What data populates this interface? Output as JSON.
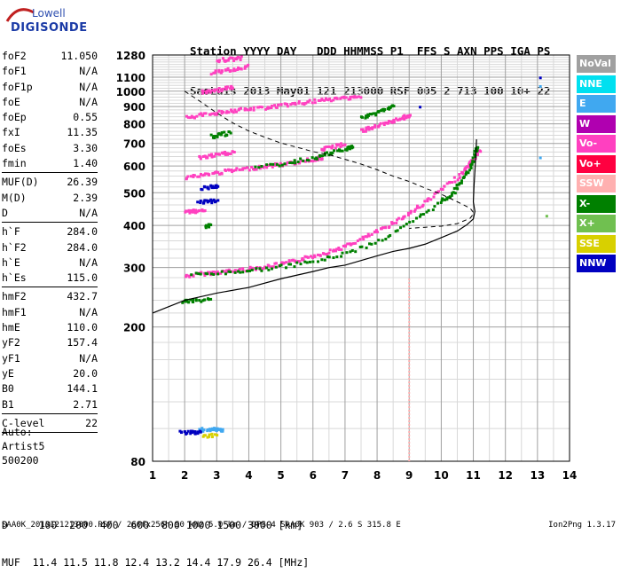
{
  "header": {
    "line1": "Station YYYY DAY   DDD HHMMSS P1  FFS S AXN PPS IGA PS",
    "line2": "SaoLuis 2013 May01 121 213000 RSF 005 2 713 100 10+ 22"
  },
  "logo": {
    "line1": "Lowell",
    "line2": "DIGISONDE"
  },
  "params": [
    {
      "k": "foF2",
      "v": "11.050"
    },
    {
      "k": "foF1",
      "v": "N/A"
    },
    {
      "k": "foF1p",
      "v": "N/A"
    },
    {
      "k": "foE",
      "v": "N/A"
    },
    {
      "k": "foEp",
      "v": "0.55"
    },
    {
      "k": "fxI",
      "v": "11.35"
    },
    {
      "k": "foEs",
      "v": "3.30"
    },
    {
      "k": "fmin",
      "v": "1.40"
    },
    {
      "sep": true
    },
    {
      "k": "MUF(D)",
      "v": "26.39"
    },
    {
      "k": "M(D)",
      "v": "2.39"
    },
    {
      "k": "D",
      "v": "N/A"
    },
    {
      "sep": true
    },
    {
      "k": "h`F",
      "v": "284.0"
    },
    {
      "k": "h`F2",
      "v": "284.0"
    },
    {
      "k": "h`E",
      "v": "N/A"
    },
    {
      "k": "h`Es",
      "v": "115.0"
    },
    {
      "sep": true
    },
    {
      "k": "hmF2",
      "v": "432.7"
    },
    {
      "k": "hmF1",
      "v": "N/A"
    },
    {
      "k": "hmE",
      "v": "110.0"
    },
    {
      "k": "yF2",
      "v": "157.4"
    },
    {
      "k": "yF1",
      "v": "N/A"
    },
    {
      "k": "yE",
      "v": "20.0"
    },
    {
      "k": "B0",
      "v": "144.1"
    },
    {
      "k": "B1",
      "v": "2.71"
    },
    {
      "sep": true
    },
    {
      "k": "C-level",
      "v": "22"
    },
    {
      "sep": true
    }
  ],
  "auto": {
    "line1": "Auto:",
    "line2": "Artist5",
    "line3": "500200"
  },
  "bottom": {
    "line1": "D     100  200  400  600  800 1000 1500 3000 [km]",
    "line2": "MUF  11.4 11.5 11.8 12.4 13.2 14.4 17.9 26.4 [MHz]"
  },
  "footer": "SAA0K_2013121213000.RSF / 260fx256h 50 kHz 5.0 km / DPS-4 SAA0K 903 / 2.6 S 315.8 E",
  "version": "Ion2Png 1.3.17",
  "legend": [
    {
      "label": "NoVal",
      "color": "#a0a0a0"
    },
    {
      "label": "NNE",
      "color": "#00e0f0"
    },
    {
      "label": "E",
      "color": "#40a8f0"
    },
    {
      "label": "W",
      "color": "#b000b0"
    },
    {
      "label": "Vo-",
      "color": "#ff40c0"
    },
    {
      "label": "Vo+",
      "color": "#ff0040"
    },
    {
      "label": "SSW",
      "color": "#ffb0b0"
    },
    {
      "label": "X-",
      "color": "#008000"
    },
    {
      "label": "X+",
      "color": "#70c050"
    },
    {
      "label": "SSE",
      "color": "#d8d000"
    },
    {
      "label": "NNW",
      "color": "#0000c0"
    }
  ],
  "chart_data": {
    "type": "scatter",
    "xlabel": "",
    "ylabel": "",
    "xlim": [
      1,
      14
    ],
    "ylim": [
      80,
      1280
    ],
    "y_scale": "log",
    "x_ticks": [
      "1",
      "2",
      "3",
      "4",
      "5",
      "6",
      "7",
      "8",
      "9",
      "10",
      "11",
      "12",
      "13",
      "14"
    ],
    "y_ticks": [
      {
        "v": 80,
        "label": "80"
      },
      {
        "v": 200,
        "label": "200"
      },
      {
        "v": 300,
        "label": "300"
      },
      {
        "v": 400,
        "label": "400"
      },
      {
        "v": 500,
        "label": "500"
      },
      {
        "v": 600,
        "label": "600"
      },
      {
        "v": 700,
        "label": "700"
      },
      {
        "v": 800,
        "label": "800"
      },
      {
        "v": 900,
        "label": "900"
      },
      {
        "v": 1000,
        "label": "1000"
      },
      {
        "v": 1100,
        "label": "1100"
      },
      {
        "v": 1280,
        "label": "1280"
      }
    ],
    "y_minor": [
      100,
      120,
      140,
      160,
      180,
      220,
      240,
      260,
      280,
      320,
      340,
      360,
      380,
      420,
      440,
      460,
      480,
      520,
      540,
      560,
      580,
      620,
      640,
      660,
      680,
      720,
      740,
      760,
      780,
      820,
      840,
      860,
      880,
      920,
      940,
      960,
      980,
      1020,
      1040,
      1060,
      1080,
      1120,
      1140,
      1160,
      1180,
      1200,
      1220,
      1240,
      1260
    ],
    "x_minor_step": 0.5,
    "profile": [
      [
        1,
        220
      ],
      [
        2,
        240
      ],
      [
        3,
        252
      ],
      [
        4,
        262
      ],
      [
        5,
        278
      ],
      [
        6,
        292
      ],
      [
        6.5,
        300
      ],
      [
        7,
        305
      ],
      [
        8,
        325
      ],
      [
        8.5,
        335
      ],
      [
        9,
        342
      ],
      [
        9.5,
        352
      ],
      [
        10,
        368
      ],
      [
        10.5,
        385
      ],
      [
        10.8,
        402
      ],
      [
        11.0,
        418
      ],
      [
        11.05,
        440
      ],
      [
        11.0,
        470
      ],
      [
        11.02,
        520
      ],
      [
        11.05,
        580
      ],
      [
        11.08,
        650
      ],
      [
        11.1,
        720
      ]
    ],
    "muf_curve": [
      [
        2.0,
        1000
      ],
      [
        2.5,
        930
      ],
      [
        3.0,
        862
      ],
      [
        3.5,
        805
      ],
      [
        4.0,
        762
      ],
      [
        4.5,
        730
      ],
      [
        5,
        702
      ],
      [
        5.5,
        682
      ],
      [
        6,
        662
      ],
      [
        6.5,
        648
      ],
      [
        7,
        628
      ],
      [
        7.5,
        608
      ],
      [
        8,
        585
      ],
      [
        8.5,
        560
      ],
      [
        9,
        540
      ],
      [
        9.5,
        516
      ],
      [
        10,
        495
      ],
      [
        10.5,
        470
      ],
      [
        10.9,
        450
      ],
      [
        11.02,
        435
      ],
      [
        10.9,
        420
      ],
      [
        10.5,
        405
      ],
      [
        10,
        398
      ],
      [
        9.5,
        395
      ],
      [
        9,
        392
      ]
    ],
    "traces": [
      {
        "series": "Vo-",
        "color": "#ff40c0",
        "points": [
          [
            2.0,
            285
          ],
          [
            2.5,
            290
          ],
          [
            3,
            293
          ],
          [
            3.5,
            296
          ],
          [
            4,
            300
          ],
          [
            4.5,
            304
          ],
          [
            5,
            310
          ],
          [
            5.5,
            318
          ],
          [
            6,
            328
          ],
          [
            6.5,
            338
          ],
          [
            7,
            350
          ],
          [
            7.5,
            368
          ],
          [
            8,
            388
          ],
          [
            8.5,
            412
          ],
          [
            9,
            440
          ],
          [
            9.5,
            475
          ],
          [
            10,
            518
          ],
          [
            10.5,
            562
          ],
          [
            10.8,
            600
          ],
          [
            11.0,
            640
          ],
          [
            11.2,
            680
          ]
        ]
      },
      {
        "series": "X-",
        "color": "#008000",
        "points": [
          [
            2.2,
            288
          ],
          [
            3.2,
            292
          ],
          [
            4.2,
            298
          ],
          [
            5.2,
            306
          ],
          [
            6.2,
            318
          ],
          [
            7.2,
            338
          ],
          [
            8.2,
            370
          ],
          [
            9.2,
            420
          ],
          [
            10,
            478
          ],
          [
            10.3,
            500
          ],
          [
            10.6,
            548
          ],
          [
            10.9,
            600
          ],
          [
            11.0,
            650
          ],
          [
            11.1,
            700
          ]
        ]
      },
      {
        "series": "Vo-",
        "color": "#ff40c0",
        "points": [
          [
            2.0,
            560
          ],
          [
            2.5,
            568
          ],
          [
            3,
            578
          ],
          [
            3.5,
            588
          ],
          [
            4,
            595
          ],
          [
            4.5,
            604
          ],
          [
            5,
            612
          ],
          [
            5.5,
            622
          ],
          [
            6,
            634
          ],
          [
            6.3,
            642
          ]
        ]
      },
      {
        "series": "X-",
        "color": "#008000",
        "points": [
          [
            4.2,
            598
          ],
          [
            5.2,
            618
          ],
          [
            6.0,
            640
          ],
          [
            6.5,
            660
          ],
          [
            7.0,
            680
          ],
          [
            7.2,
            692
          ]
        ]
      },
      {
        "series": "Vo-",
        "color": "#ff40c0",
        "points": [
          [
            2.4,
            640
          ],
          [
            2.8,
            648
          ],
          [
            3.2,
            658
          ],
          [
            3.5,
            666
          ]
        ]
      },
      {
        "series": "Vo-",
        "color": "#ff40c0",
        "points": [
          [
            6.2,
            675
          ],
          [
            6.6,
            690
          ],
          [
            7.0,
            705
          ]
        ]
      },
      {
        "series": "Vo-",
        "color": "#ff40c0",
        "points": [
          [
            2.0,
            840
          ],
          [
            2.5,
            858
          ],
          [
            3,
            872
          ],
          [
            3.5,
            882
          ],
          [
            4,
            892
          ],
          [
            4.5,
            902
          ],
          [
            5,
            914
          ],
          [
            5.5,
            928
          ],
          [
            6,
            940
          ],
          [
            6.5,
            952
          ],
          [
            7,
            964
          ],
          [
            7.5,
            975
          ]
        ]
      },
      {
        "series": "X-",
        "color": "#008000",
        "points": [
          [
            7.5,
            840
          ],
          [
            7.8,
            860
          ],
          [
            8.2,
            890
          ],
          [
            8.5,
            910
          ]
        ]
      },
      {
        "series": "Vo-",
        "color": "#ff40c0",
        "points": [
          [
            7.5,
            770
          ],
          [
            7.8,
            788
          ],
          [
            8.2,
            805
          ],
          [
            8.5,
            820
          ],
          [
            8.8,
            845
          ],
          [
            9.0,
            858
          ]
        ]
      },
      {
        "series": "Vo-",
        "color": "#ff40c0",
        "points": [
          [
            2.5,
            1000
          ],
          [
            2.8,
            1010
          ],
          [
            3.2,
            1025
          ],
          [
            3.5,
            1035
          ]
        ]
      },
      {
        "series": "Vo-",
        "color": "#ff40c0",
        "points": [
          [
            2.8,
            1140
          ],
          [
            3.2,
            1160
          ],
          [
            3.6,
            1178
          ],
          [
            4.0,
            1195
          ]
        ]
      },
      {
        "series": "Vo-",
        "color": "#ff40c0",
        "points": [
          [
            3.0,
            1245
          ],
          [
            3.4,
            1255
          ],
          [
            3.8,
            1265
          ]
        ]
      },
      {
        "series": "NNW",
        "color": "#0000c0",
        "points": [
          [
            2.5,
            520
          ],
          [
            2.8,
            525
          ],
          [
            3.0,
            530
          ]
        ]
      },
      {
        "series": "NNW",
        "color": "#0000c0",
        "points": [
          [
            2.4,
            470
          ],
          [
            2.7,
            475
          ],
          [
            3.0,
            480
          ]
        ]
      },
      {
        "series": "Vo-",
        "color": "#ff40c0",
        "points": [
          [
            2.0,
            440
          ],
          [
            2.3,
            445
          ],
          [
            2.6,
            450
          ]
        ]
      },
      {
        "series": "E",
        "color": "#40a8f0",
        "points": [
          [
            2.4,
            100
          ],
          [
            2.8,
            100
          ],
          [
            3.0,
            100
          ],
          [
            3.2,
            100
          ]
        ]
      },
      {
        "series": "NNW",
        "color": "#0000c0",
        "points": [
          [
            1.8,
            98
          ],
          [
            2.2,
            98
          ],
          [
            2.5,
            98
          ]
        ]
      },
      {
        "series": "SSE",
        "color": "#d8d000",
        "points": [
          [
            2.5,
            96
          ],
          [
            3.0,
            96
          ]
        ]
      },
      {
        "series": "X-",
        "color": "#008000",
        "points": [
          [
            1.9,
            240
          ],
          [
            2.3,
            242
          ],
          [
            2.8,
            244
          ]
        ]
      },
      {
        "series": "X-",
        "color": "#008000",
        "points": [
          [
            2.6,
            400
          ],
          [
            2.8,
            405
          ]
        ]
      },
      {
        "series": "X-",
        "color": "#008000",
        "points": [
          [
            2.8,
            740
          ],
          [
            3.1,
            750
          ],
          [
            3.4,
            760
          ]
        ]
      }
    ],
    "vertical_band": {
      "series": "SSW",
      "color": "#ffb0b0",
      "x": 9.0,
      "y_from": 80,
      "y_to": 280
    },
    "isolated_points": [
      {
        "series": "NNW",
        "color": "#0000c0",
        "x": 9.3,
        "y": 905
      },
      {
        "series": "NNW",
        "color": "#0000c0",
        "x": 13.05,
        "y": 1105
      },
      {
        "series": "E",
        "color": "#40a8f0",
        "x": 13.05,
        "y": 1042
      },
      {
        "series": "E",
        "color": "#40a8f0",
        "x": 13.05,
        "y": 640
      },
      {
        "series": "X+",
        "color": "#70c050",
        "x": 13.25,
        "y": 430
      }
    ]
  }
}
